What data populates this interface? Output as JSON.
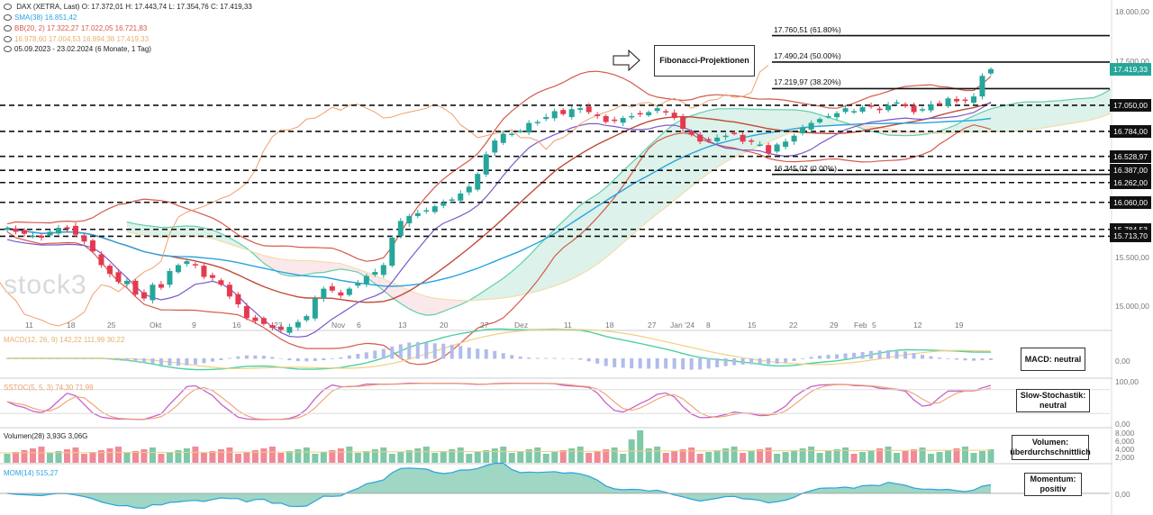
{
  "header": {
    "instrument": "DAX (XETRA, Last)",
    "open": "O: 17.372,01",
    "high": "H: 17.443,74",
    "low": "L: 17.354,76",
    "close": "C: 17.419,33",
    "sma": "SMA(38) 16.851,42",
    "bb": "BB(20, 2) 17.322,27  17.022,05  16.721,83",
    "ichimoku": "16.978,60  17.004,53  16.894,38  17.419,33",
    "range": "05.09.2023 - 23.02.2024 (6 Monate, 1 Tag)"
  },
  "colors": {
    "up": "#26a69a",
    "down": "#e53950",
    "sma": "#29a3e0",
    "bb": "#d45a4c",
    "kijun": "#f0a070",
    "cloudA": "#bfe8d8",
    "cloudB": "#f8d6d8"
  },
  "watermark": "stock3",
  "arrow_label": "Fibonacci-Projektionen",
  "fib_levels": [
    {
      "label": "17.760,51 (61.80%)",
      "value": 17760.51
    },
    {
      "label": "17.490,24 (50.00%)",
      "value": 17490.24
    },
    {
      "label": "17.219,97 (38.20%)",
      "value": 17219.97
    },
    {
      "label": "16.345,07 (0.00%)",
      "value": 16345.07
    }
  ],
  "price_tags": [
    {
      "label": "17.419,33",
      "value": 17419.33,
      "style": "green"
    },
    {
      "label": "17.050,00",
      "value": 17050,
      "style": "dark"
    },
    {
      "label": "16.784,00",
      "value": 16784,
      "style": "dark"
    },
    {
      "label": "16.528,97",
      "value": 16528.97,
      "style": "dark"
    },
    {
      "label": "16.387,00",
      "value": 16387,
      "style": "dark"
    },
    {
      "label": "16.262,00",
      "value": 16262,
      "style": "dark"
    },
    {
      "label": "16.060,00",
      "value": 16060,
      "style": "dark"
    },
    {
      "label": "15.784,53",
      "value": 15784.53,
      "style": "dark"
    },
    {
      "label": "15.713,70",
      "value": 15713.7,
      "style": "dark"
    }
  ],
  "panels": {
    "macd": {
      "label": "MACD(12, 26, 9) 142,22  111,99  30,22",
      "box": "MACD: neutral",
      "tick": "0,00"
    },
    "stoch": {
      "label": "SSTOC(5, 5, 3) 74,30  71,99",
      "box": "Slow-Stochastik: neutral",
      "ticks": [
        "100,00",
        "0,00"
      ]
    },
    "volume": {
      "label": "Volumen(28)  3,93G  3,06G",
      "box": "Volumen: überdurchschnittlich",
      "ticks": [
        "8,000",
        "6,000",
        "4,000",
        "2,000"
      ]
    },
    "mom": {
      "label": "MOM(14)  515,27",
      "box": "Momentum: positiv",
      "tick": "0,00"
    }
  },
  "chart_data": {
    "type": "candlestick",
    "ylim": [
      14800,
      18050
    ],
    "y_ticks": [
      {
        "label": "18.000,00",
        "value": 18000
      },
      {
        "label": "17.500,00",
        "value": 17500
      },
      {
        "label": "15.500,00",
        "value": 15500
      },
      {
        "label": "15.000,00",
        "value": 15000
      }
    ],
    "x_ticks": [
      "11",
      "18",
      "25",
      "Okt",
      "9",
      "16",
      "23",
      "Nov",
      "6",
      "13",
      "20",
      "27",
      "Dez",
      "11",
      "18",
      "27",
      "Jan '24",
      "8",
      "15",
      "22",
      "29",
      "Feb",
      "5",
      "12",
      "19"
    ],
    "horizontal_lines": [
      17050,
      16784,
      16528.97,
      16387,
      16262,
      16060,
      15784.53,
      15713.7
    ],
    "closes": [
      15800,
      15760,
      15740,
      15720,
      15700,
      15760,
      15800,
      15790,
      15730,
      15660,
      15560,
      15420,
      15330,
      15250,
      15260,
      15120,
      15080,
      15220,
      15190,
      15360,
      15420,
      15460,
      15420,
      15300,
      15290,
      15220,
      15100,
      15020,
      14880,
      14850,
      14820,
      14780,
      14760,
      14790,
      14840,
      14900,
      15080,
      15180,
      15160,
      15110,
      15180,
      15240,
      15310,
      15350,
      15420,
      15700,
      15870,
      15920,
      15950,
      15980,
      16020,
      16060,
      16090,
      16150,
      16220,
      16350,
      16550,
      16690,
      16760,
      16760,
      16790,
      16870,
      16880,
      16930,
      16990,
      16960,
      17010,
      17020,
      16980,
      16940,
      16880,
      16890,
      16920,
      16940,
      16960,
      16980,
      17020,
      16980,
      16920,
      16810,
      16750,
      16680,
      16700,
      16720,
      16740,
      16760,
      16680,
      16680,
      16650,
      16560,
      16650,
      16680,
      16740,
      16820,
      16870,
      16910,
      16940,
      16970,
      17020,
      16990,
      17030,
      17040,
      17000,
      17050,
      17080,
      17040,
      16980,
      17010,
      17060,
      17070,
      17120,
      17090,
      17100,
      17140,
      17350,
      17419
    ]
  }
}
